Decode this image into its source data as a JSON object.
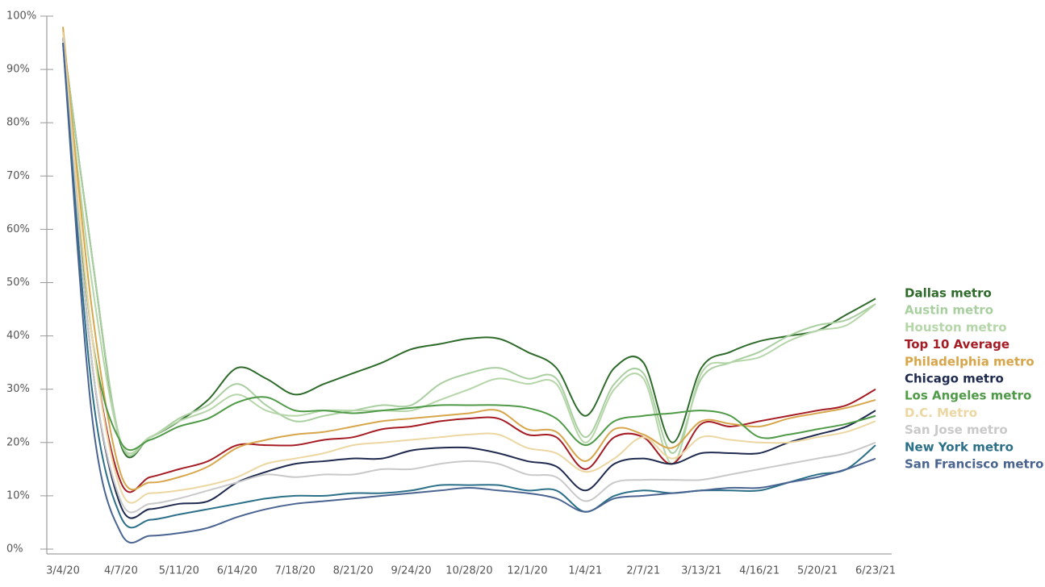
{
  "chart_data": {
    "type": "line",
    "categories": [
      "3/4/20",
      null,
      "4/7/20",
      null,
      "5/11/20",
      null,
      "6/14/20",
      null,
      "7/18/20",
      null,
      "8/21/20",
      null,
      "9/24/20",
      null,
      "10/28/20",
      null,
      "12/1/20",
      null,
      "1/4/21",
      null,
      "2/7/21",
      null,
      "3/13/21",
      null,
      "4/16/21",
      null,
      "5/20/21",
      null,
      "6/23/21"
    ],
    "ylim": [
      0,
      100
    ],
    "yticks": [
      {
        "value": 0,
        "label": "0%"
      },
      {
        "value": 10,
        "label": "10%"
      },
      {
        "value": 20,
        "label": "20%"
      },
      {
        "value": 30,
        "label": "30%"
      },
      {
        "value": 40,
        "label": "40%"
      },
      {
        "value": 50,
        "label": "50%"
      },
      {
        "value": 60,
        "label": "60%"
      },
      {
        "value": 70,
        "label": "70%"
      },
      {
        "value": 80,
        "label": "80%"
      },
      {
        "value": 90,
        "label": "90%"
      },
      {
        "value": 100,
        "label": "100%"
      }
    ],
    "legend": "right",
    "series": [
      {
        "name": "Dallas metro",
        "color": "#2e6b2a",
        "values": [
          96,
          55,
          19.5,
          21,
          24,
          28,
          34,
          32,
          29,
          31,
          33,
          35,
          37.5,
          38.5,
          39.5,
          39.5,
          37,
          34,
          25,
          34,
          35,
          20,
          34,
          37,
          39,
          40,
          41,
          44,
          47
        ]
      },
      {
        "name": "Austin metro",
        "color": "#a9cfa0",
        "values": [
          96,
          55,
          20,
          21,
          24.5,
          27,
          31,
          27,
          24,
          25,
          26,
          27,
          27,
          31,
          33,
          34,
          32,
          32,
          21,
          31,
          33,
          18,
          32,
          35,
          37,
          40,
          42,
          43,
          46
        ]
      },
      {
        "name": "Houston metro",
        "color": "#b5d6a8",
        "values": [
          95,
          50,
          20,
          21,
          24,
          26,
          29,
          26,
          25,
          26,
          26,
          26,
          26,
          28,
          30,
          32,
          31,
          31,
          20,
          30,
          32,
          16,
          33,
          35,
          36,
          39,
          41,
          42,
          46
        ]
      },
      {
        "name": "Top 10 Average",
        "color": "#a51c24",
        "values": [
          96,
          40,
          12.5,
          13.5,
          15,
          16.5,
          19.5,
          19.5,
          19.5,
          20.5,
          21,
          22.5,
          23,
          24,
          24.5,
          24.5,
          21.5,
          21,
          15,
          21,
          21,
          16,
          23.5,
          23,
          24,
          25,
          26,
          27,
          30
        ]
      },
      {
        "name": "Philadelphia metro",
        "color": "#d7a64b",
        "values": [
          98,
          45,
          14,
          12.5,
          13.5,
          15.5,
          19,
          20.5,
          21.5,
          22,
          23,
          24,
          24.5,
          25,
          25.5,
          26,
          22.5,
          22,
          16.5,
          22.5,
          21.5,
          19,
          24,
          23.5,
          23,
          24.5,
          25.5,
          26.5,
          28
        ]
      },
      {
        "name": "Chicago metro",
        "color": "#1f2a4f",
        "values": [
          96,
          35,
          8,
          7.5,
          8.5,
          9,
          12.5,
          14.5,
          16,
          16.5,
          17,
          17,
          18.5,
          19,
          19,
          18,
          16.5,
          15.5,
          11,
          16,
          17,
          16,
          18,
          18,
          18,
          20,
          21.5,
          23,
          26
        ]
      },
      {
        "name": "Los Angeles metro",
        "color": "#4f9a47",
        "values": [
          96,
          40,
          20,
          20.5,
          23,
          24.5,
          27.5,
          28.5,
          26,
          26,
          25.5,
          26,
          26.5,
          27,
          27,
          27,
          26.5,
          24.5,
          19.5,
          24,
          25,
          25.5,
          26,
          25,
          21,
          21.5,
          22.5,
          23.5,
          25
        ]
      },
      {
        "name": "D.C. Metro",
        "color": "#ecd7a2",
        "values": [
          97,
          40,
          11,
          10.5,
          11,
          12,
          13.5,
          16,
          17,
          18,
          19.5,
          20,
          20.5,
          21,
          21.5,
          21.5,
          19,
          18,
          14.5,
          17,
          21,
          17,
          21,
          20.5,
          20,
          20,
          21,
          22,
          24
        ]
      },
      {
        "name": "San Jose metro",
        "color": "#c9c9c9",
        "values": [
          96,
          35,
          9,
          8.5,
          9.5,
          11,
          12.5,
          14,
          13.5,
          14,
          14,
          15,
          15,
          16,
          16.5,
          16,
          14,
          13.5,
          9,
          12.5,
          13,
          13,
          13,
          14,
          15,
          16,
          17,
          18,
          20
        ]
      },
      {
        "name": "New York metro",
        "color": "#2b6f88",
        "values": [
          95,
          30,
          6,
          5.5,
          6.5,
          7.5,
          8.5,
          9.5,
          10,
          10,
          10.5,
          10.5,
          11,
          12,
          12,
          12,
          11,
          11,
          7,
          10,
          11,
          10.5,
          11,
          11,
          11,
          12.5,
          14,
          15,
          19.5
        ]
      },
      {
        "name": "San Francisco metro",
        "color": "#4a6491",
        "values": [
          95,
          25,
          3,
          2.5,
          3,
          4,
          6,
          7.5,
          8.5,
          9,
          9.5,
          10,
          10.5,
          11,
          11.5,
          11,
          10.5,
          9.5,
          7,
          9.5,
          10,
          10.5,
          11,
          11.5,
          11.5,
          12.5,
          13.5,
          15,
          17
        ]
      }
    ]
  }
}
